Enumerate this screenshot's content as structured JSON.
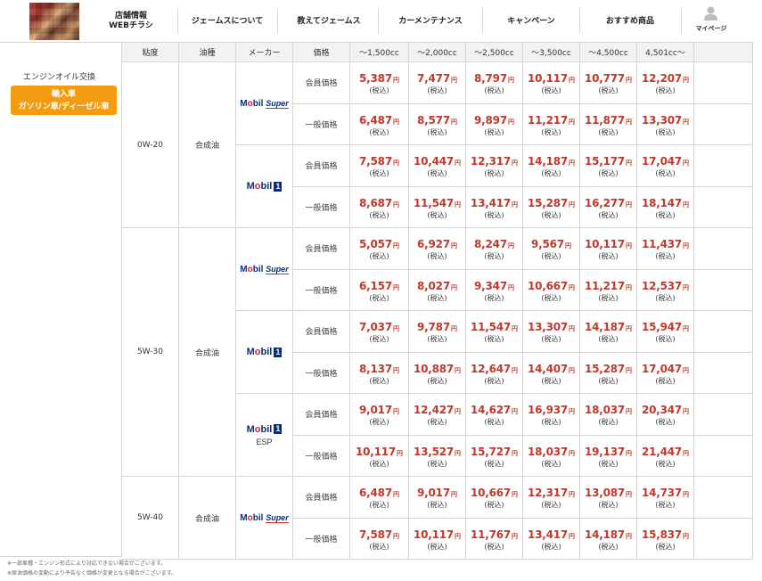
{
  "header": {
    "logo_name": "blurred-logo",
    "nav": [
      {
        "label": "店舗情報\nWEBチラシ"
      },
      {
        "label": "ジェームスについて"
      },
      {
        "label": "教えてジェームス"
      },
      {
        "label": "カーメンテナンス"
      },
      {
        "label": "キャンペーン"
      },
      {
        "label": "おすすめ商品"
      }
    ],
    "mypage_label": "マイページ"
  },
  "table": {
    "headers": [
      "粘度",
      "油種",
      "メーカー",
      "価格",
      "〜1,500cc",
      "〜2,000cc",
      "〜2,500cc",
      "〜3,500cc",
      "〜4,500cc",
      "4,501cc〜"
    ],
    "category_title": "エンジンオイル交換",
    "badge_line1": "輸入車",
    "badge_line2": "ガソリン車/ディーゼル車",
    "price_types": [
      "会員価格",
      "一般価格"
    ],
    "yen": "円",
    "tax": "(税込)",
    "groups": [
      {
        "viscosity": "0W-20",
        "oil_type": "合成油",
        "products": [
          {
            "brand": "Mobil Super",
            "logo": "mobil-super",
            "member": [
              "5,387",
              "7,477",
              "8,797",
              "10,117",
              "10,777",
              "12,207"
            ],
            "general": [
              "6,487",
              "8,577",
              "9,897",
              "11,217",
              "11,877",
              "13,307"
            ]
          },
          {
            "brand": "Mobil 1",
            "logo": "mobil-1",
            "member": [
              "7,587",
              "10,447",
              "12,317",
              "14,187",
              "15,177",
              "17,047"
            ],
            "general": [
              "8,687",
              "11,547",
              "13,417",
              "15,287",
              "16,277",
              "18,147"
            ]
          }
        ]
      },
      {
        "viscosity": "5W-30",
        "oil_type": "合成油",
        "products": [
          {
            "brand": "Mobil Super",
            "logo": "mobil-super",
            "member": [
              "5,057",
              "6,927",
              "8,247",
              "9,567",
              "10,117",
              "11,437"
            ],
            "general": [
              "6,157",
              "8,027",
              "9,347",
              "10,667",
              "11,217",
              "12,537"
            ]
          },
          {
            "brand": "Mobil 1",
            "logo": "mobil-1",
            "member": [
              "7,037",
              "9,787",
              "11,547",
              "13,307",
              "14,187",
              "15,947"
            ],
            "general": [
              "8,137",
              "10,887",
              "12,647",
              "14,407",
              "15,287",
              "17,047"
            ]
          },
          {
            "brand": "Mobil 1 ESP",
            "logo": "mobil-1-esp",
            "sub": "ESP",
            "member": [
              "9,017",
              "12,427",
              "14,627",
              "16,937",
              "18,037",
              "20,347"
            ],
            "general": [
              "10,117",
              "13,527",
              "15,727",
              "18,037",
              "19,137",
              "21,447"
            ]
          }
        ]
      },
      {
        "viscosity": "5W-40",
        "oil_type": "合成油",
        "products": [
          {
            "brand": "Mobil Super",
            "logo": "mobil-super",
            "member": [
              "6,487",
              "9,017",
              "10,667",
              "12,317",
              "13,087",
              "14,737"
            ],
            "general": [
              "7,587",
              "10,117",
              "11,767",
              "13,417",
              "14,187",
              "15,837"
            ]
          }
        ]
      }
    ]
  },
  "notes": [
    "※一部車種・エンジン形式により対応できない場合がございます。",
    "※原油価格の変動により予告なく価格が変更となる場合がございます。"
  ],
  "colors": {
    "price": "#c0392b",
    "badge": "#f39c12",
    "header_bg": "#f2f2f2"
  }
}
